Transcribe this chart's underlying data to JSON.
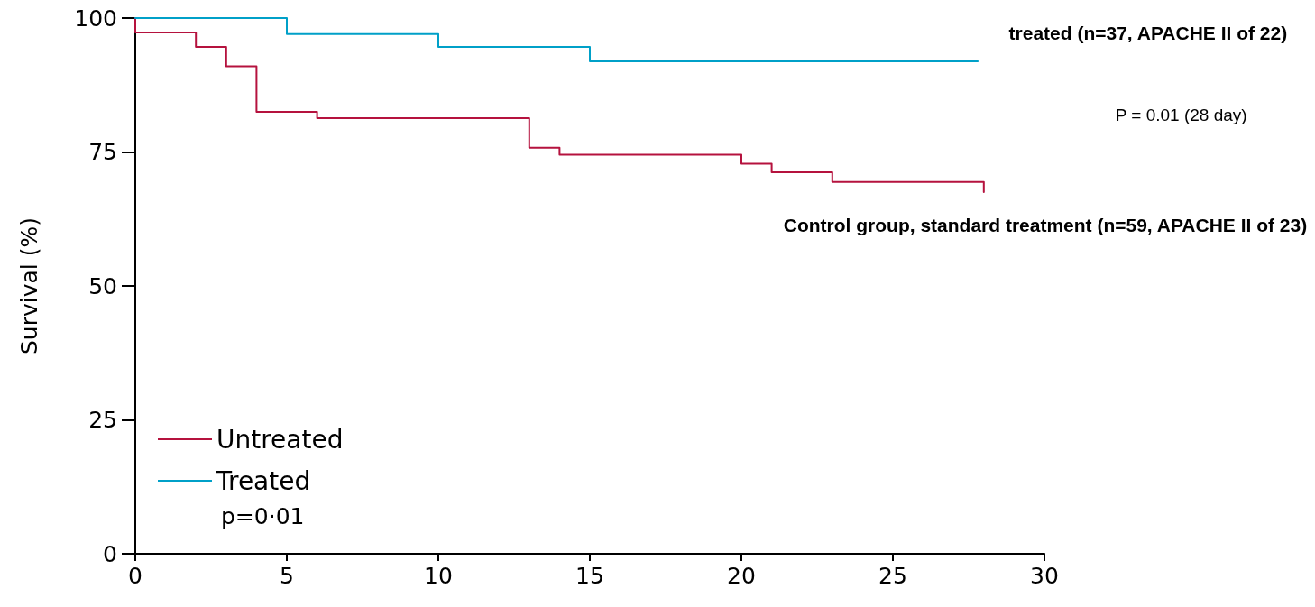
{
  "chart_data": {
    "type": "step",
    "ylabel": "Survival (%)",
    "xlim": [
      0,
      30
    ],
    "xticks": [
      0,
      5,
      10,
      15,
      20,
      25,
      30
    ],
    "ylim": [
      0,
      100
    ],
    "yticks": [
      0,
      25,
      50,
      75,
      100
    ],
    "grid": false,
    "legend": "bottom left",
    "marker": "none",
    "line_style": "solid",
    "series": [
      {
        "name": "Untreated",
        "color": "#b5123e",
        "x": [
          0,
          0,
          2,
          3,
          4,
          6,
          13,
          14,
          20,
          21,
          23,
          28,
          28
        ],
        "values": [
          100,
          97.3,
          94.6,
          91.0,
          82.5,
          81.3,
          75.8,
          74.5,
          72.8,
          71.2,
          69.4,
          69.4,
          67.5
        ]
      },
      {
        "name": "Treated",
        "color": "#00a0c8",
        "x": [
          0,
          5,
          10,
          15,
          27.8
        ],
        "values": [
          100,
          97,
          94.6,
          91.9,
          91.9
        ]
      }
    ],
    "annotations": [
      "treated (n=37, APACHE II of 22)",
      "P = 0.01 (28 day)",
      "Control group, standard treatment (n=59, APACHE II of 23)",
      "p=0·01"
    ]
  }
}
